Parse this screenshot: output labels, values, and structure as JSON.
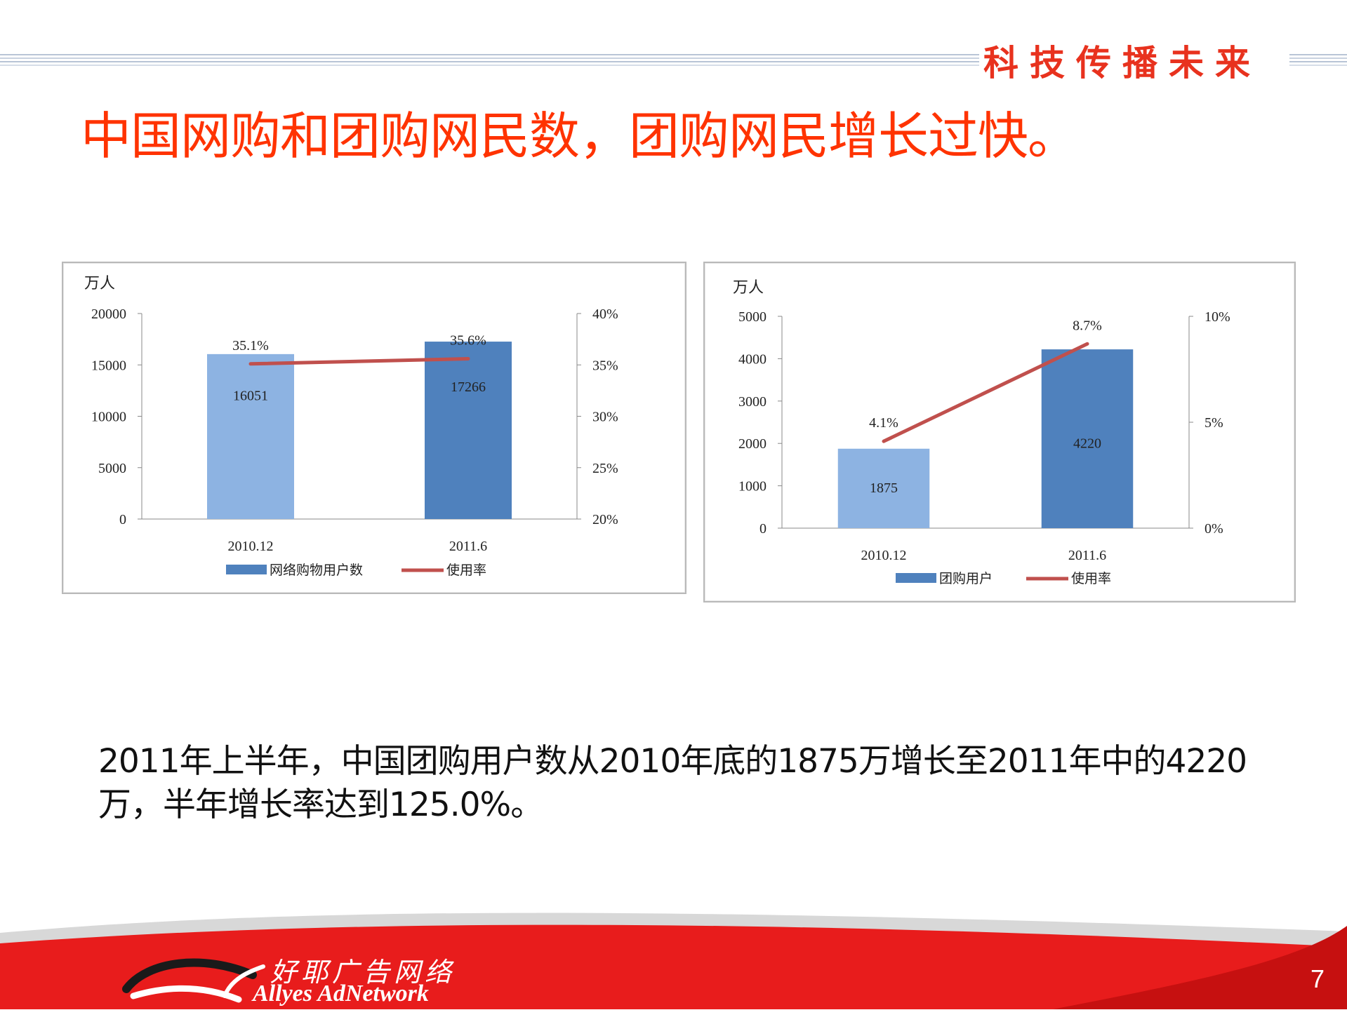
{
  "header": {
    "slogan": "科技传播未来",
    "title": "中国网购和团购网民数，团购网民增长过快。"
  },
  "chart_data": [
    {
      "type": "bar",
      "unit_label": "万人",
      "categories": [
        "2010.12",
        "2011.6"
      ],
      "series": [
        {
          "name": "网络购物用户数",
          "type": "bar",
          "axis": "left",
          "values": [
            16051,
            17266
          ],
          "colors": [
            "#8db3e2",
            "#4f81bd"
          ]
        },
        {
          "name": "使用率",
          "type": "line",
          "axis": "right",
          "values": [
            35.1,
            35.6
          ],
          "labels": [
            "35.1%",
            "35.6%"
          ],
          "color": "#c0504d"
        }
      ],
      "y_left": {
        "min": 0,
        "max": 20000,
        "ticks": [
          0,
          5000,
          10000,
          15000,
          20000
        ]
      },
      "y_right": {
        "min": 20,
        "max": 40,
        "ticks": [
          "20%",
          "25%",
          "30%",
          "35%",
          "40%"
        ],
        "tick_values": [
          20,
          25,
          30,
          35,
          40
        ]
      },
      "grid": false,
      "legend_position": "bottom"
    },
    {
      "type": "bar",
      "unit_label": "万人",
      "categories": [
        "2010.12",
        "2011.6"
      ],
      "series": [
        {
          "name": "团购用户",
          "type": "bar",
          "axis": "left",
          "values": [
            1875,
            4220
          ],
          "colors": [
            "#8db3e2",
            "#4f81bd"
          ]
        },
        {
          "name": "使用率",
          "type": "line",
          "axis": "right",
          "values": [
            4.1,
            8.7
          ],
          "labels": [
            "4.1%",
            "8.7%"
          ],
          "color": "#c0504d"
        }
      ],
      "y_left": {
        "min": 0,
        "max": 5000,
        "ticks": [
          0,
          1000,
          2000,
          3000,
          4000,
          5000
        ]
      },
      "y_right": {
        "min": 0,
        "max": 10,
        "ticks": [
          "0%",
          "5%",
          "10%"
        ],
        "tick_values": [
          0,
          5,
          10
        ]
      },
      "grid": false,
      "legend_position": "bottom"
    }
  ],
  "summary": {
    "line1": "2011年上半年，中国团购用户数从2010年底的1875万增长至2011年中的4220",
    "line2": "万，半年增长率达到125.0%。"
  },
  "footer": {
    "logo_cn": "好耶广告网络",
    "logo_en": "Allyes AdNetwork",
    "page_number": "7"
  },
  "colors": {
    "accent": "#ff3300",
    "footer_red": "#e81c1c",
    "bar_light": "#8db3e2",
    "bar_dark": "#4f81bd",
    "line": "#c0504d"
  }
}
